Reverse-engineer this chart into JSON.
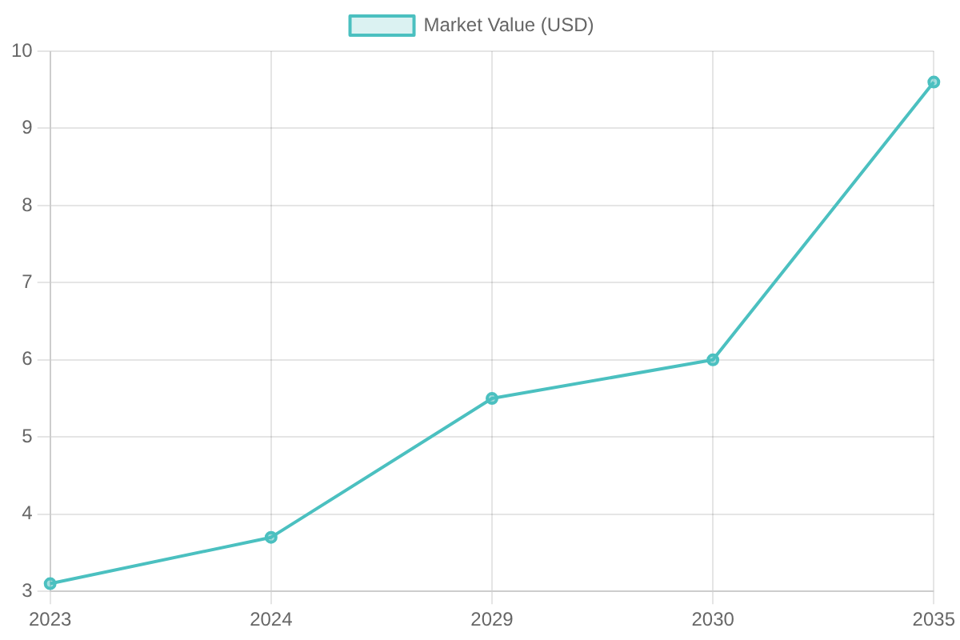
{
  "chart_data": {
    "type": "line",
    "categories": [
      "2023",
      "2024",
      "2029",
      "2030",
      "2035"
    ],
    "series": [
      {
        "name": "Market Value (USD)",
        "color": "#4bc0c0",
        "values": [
          3.1,
          3.7,
          5.5,
          6.0,
          9.6
        ]
      }
    ],
    "ylim": [
      3,
      10
    ],
    "yticks": [
      3,
      4,
      5,
      6,
      7,
      8,
      9,
      10
    ],
    "grid": true,
    "legend": "top",
    "marker": "circle"
  }
}
